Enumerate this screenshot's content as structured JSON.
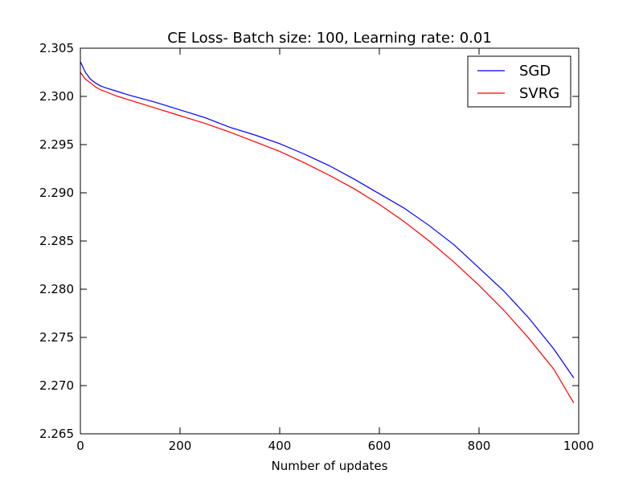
{
  "chart_data": {
    "type": "line",
    "title": "CE Loss- Batch size: 100, Learning rate: 0.01",
    "xlabel": "Number of updates",
    "ylabel": "",
    "xlim": [
      0,
      1000
    ],
    "ylim": [
      2.265,
      2.305
    ],
    "grid": false,
    "legend_position": "top-right",
    "x_ticks": [
      "0",
      "200",
      "400",
      "600",
      "800",
      "1000"
    ],
    "y_ticks": [
      "2.265",
      "2.270",
      "2.275",
      "2.280",
      "2.285",
      "2.290",
      "2.295",
      "2.300",
      "2.305"
    ],
    "x": [
      0,
      10,
      20,
      30,
      40,
      50,
      75,
      100,
      150,
      200,
      250,
      300,
      350,
      400,
      450,
      500,
      550,
      600,
      650,
      700,
      750,
      800,
      850,
      900,
      950,
      990
    ],
    "series": [
      {
        "name": "SGD",
        "color": "#0000ff",
        "values": [
          2.3036,
          2.3025,
          2.3018,
          2.3014,
          2.3011,
          2.3009,
          2.3005,
          2.3001,
          2.2994,
          2.2986,
          2.2978,
          2.2968,
          2.296,
          2.2951,
          2.294,
          2.2928,
          2.2914,
          2.2899,
          2.2884,
          2.2866,
          2.2846,
          2.2822,
          2.2798,
          2.277,
          2.2738,
          2.2708
        ]
      },
      {
        "name": "SVRG",
        "color": "#ff0000",
        "values": [
          2.3025,
          2.3018,
          2.3014,
          2.301,
          2.3007,
          2.3005,
          2.3,
          2.2996,
          2.2988,
          2.298,
          2.2972,
          2.2963,
          2.2953,
          2.2943,
          2.2931,
          2.2918,
          2.2904,
          2.2888,
          2.287,
          2.285,
          2.2828,
          2.2804,
          2.2778,
          2.2749,
          2.2717,
          2.2682
        ]
      }
    ]
  }
}
